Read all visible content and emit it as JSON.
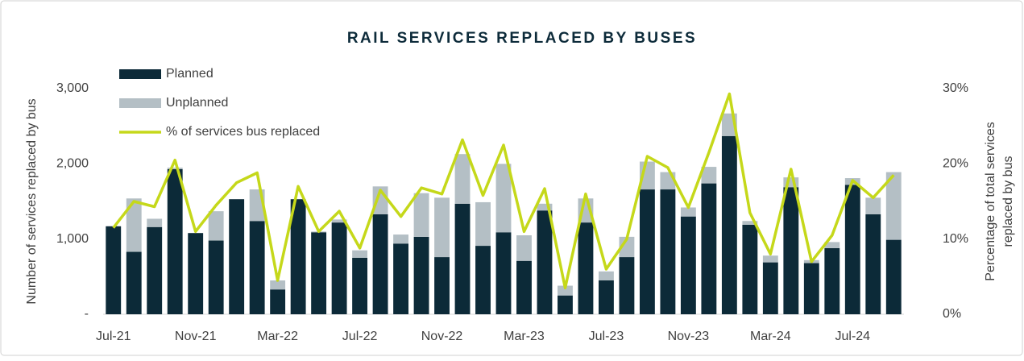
{
  "chart_data": {
    "type": "bar",
    "title": "RAIL SERVICES REPLACED BY BUSES",
    "y_label": "Number of services replaced by bus",
    "y2_label": [
      "Percentage  of total services",
      "replaced by bus"
    ],
    "categories": [
      "Jul-21",
      null,
      null,
      null,
      "Nov-21",
      null,
      null,
      null,
      "Mar-22",
      null,
      null,
      null,
      "Jul-22",
      null,
      null,
      null,
      "Nov-22",
      null,
      null,
      null,
      "Mar-23",
      null,
      null,
      null,
      "Jul-23",
      null,
      null,
      null,
      "Nov-23",
      null,
      null,
      null,
      "Mar-24",
      null,
      null,
      null,
      "Jul-24",
      null,
      null
    ],
    "stacked": true,
    "series": [
      {
        "name": "Planned",
        "color": "#0c2a38",
        "values": [
          1170,
          830,
          1160,
          1930,
          1080,
          980,
          1530,
          1240,
          330,
          1530,
          1090,
          1220,
          750,
          1330,
          940,
          1030,
          760,
          1470,
          910,
          1090,
          710,
          1380,
          250,
          1220,
          450,
          760,
          1660,
          1660,
          1300,
          1740,
          2370,
          1190,
          690,
          1690,
          680,
          880,
          1720,
          1330,
          990
        ]
      },
      {
        "name": "Unplanned",
        "color": "#b4bfc5",
        "values": [
          0,
          710,
          110,
          20,
          0,
          390,
          0,
          420,
          120,
          0,
          10,
          40,
          100,
          370,
          120,
          580,
          790,
          660,
          580,
          910,
          340,
          90,
          130,
          320,
          120,
          270,
          370,
          230,
          120,
          220,
          300,
          50,
          90,
          130,
          40,
          80,
          90,
          220,
          900
        ]
      },
      {
        "name": "% of services bus replaced",
        "color": "#c5d81a",
        "type": "line",
        "axis": "y2",
        "values": [
          11.5,
          15,
          14.3,
          20.5,
          11,
          14.5,
          17.5,
          18.8,
          4.5,
          17,
          11,
          13.7,
          8.8,
          16.5,
          13,
          16.8,
          16,
          23.2,
          15.8,
          22.5,
          11,
          16.7,
          3.5,
          16,
          6,
          10,
          21,
          19.5,
          14.2,
          21.5,
          29.3,
          13.5,
          8,
          19.3,
          7,
          10.5,
          17.8,
          15.5,
          18.5
        ]
      }
    ],
    "ylim": [
      0,
      3000
    ],
    "yticks": [
      {
        "value": 0,
        "label": "-"
      },
      {
        "value": 1000,
        "label": "1,000"
      },
      {
        "value": 2000,
        "label": "2,000"
      },
      {
        "value": 3000,
        "label": "3,000"
      }
    ],
    "y2lim": [
      0,
      30
    ],
    "y2ticks": [
      {
        "value": 0,
        "label": "0%"
      },
      {
        "value": 10,
        "label": "10%"
      },
      {
        "value": 20,
        "label": "20%"
      },
      {
        "value": 30,
        "label": "30%"
      }
    ],
    "legend": "top-left",
    "grid": false
  }
}
